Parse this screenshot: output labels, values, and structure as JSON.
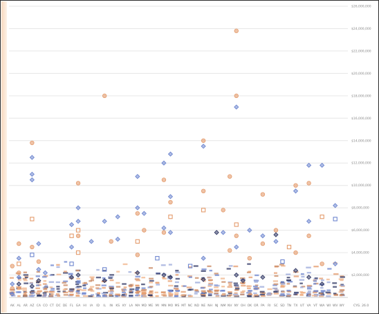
{
  "chart_data": {
    "type": "scatter",
    "title": "",
    "xlabel": "",
    "ylabel": "",
    "ylim": [
      0,
      26000000
    ],
    "y_axis_side": "right",
    "y_tick_values": [
      2000000,
      4000000,
      6000000,
      8000000,
      10000000,
      12000000,
      14000000,
      16000000,
      18000000,
      20000000,
      22000000,
      24000000,
      26000000
    ],
    "y_tick_labels": [
      "$2,000,000",
      "$4,000,000",
      "$6,000,000",
      "$8,000,000",
      "$10,000,000",
      "$12,000,000",
      "$14,000,000",
      "$16,000,000",
      "$18,000,000",
      "$20,000,000",
      "$22,000,000",
      "$24,000,000",
      "$26,000,000"
    ],
    "grid": true,
    "legend": "none",
    "categories": [
      "AK",
      "AL",
      "AR",
      "AZ",
      "CA",
      "CO",
      "CT",
      "DC",
      "DE",
      "FL",
      "GA",
      "HI",
      "IA",
      "ID",
      "IL",
      "IN",
      "KS",
      "KY",
      "LA",
      "MA",
      "MD",
      "ME",
      "MI",
      "MN",
      "MO",
      "MS",
      "MT",
      "NC",
      "ND",
      "NE",
      "NH",
      "NJ",
      "NM",
      "NV",
      "NY",
      "OH",
      "OK",
      "OR",
      "PA",
      "RI",
      "SC",
      "SD",
      "TN",
      "TX",
      "UT",
      "VA",
      "VT",
      "WA",
      "WI",
      "WV",
      "WY"
    ],
    "x_corner_label": "CYG. 26.0",
    "colors": {
      "blue": "#6e86cf",
      "orange": "#e49b6c",
      "dark": "#333a66"
    },
    "series": [
      {
        "name": "",
        "marker": "diamond",
        "color": "blue",
        "points": [
          {
            "x": "AK",
            "y": 1200000
          },
          {
            "x": "AK",
            "y": 300000
          },
          {
            "x": "AL",
            "y": 3500000
          },
          {
            "x": "AL",
            "y": 1800000
          },
          {
            "x": "AZ",
            "y": 11000000
          },
          {
            "x": "AZ",
            "y": 12500000
          },
          {
            "x": "AZ",
            "y": 10500000
          },
          {
            "x": "CA",
            "y": 4800000
          },
          {
            "x": "CA",
            "y": 2500000
          },
          {
            "x": "CO",
            "y": 2200000
          },
          {
            "x": "FL",
            "y": 6500000
          },
          {
            "x": "FL",
            "y": 4500000
          },
          {
            "x": "GA",
            "y": 8000000
          },
          {
            "x": "GA",
            "y": 6800000
          },
          {
            "x": "IA",
            "y": 5000000
          },
          {
            "x": "IL",
            "y": 6800000
          },
          {
            "x": "KS",
            "y": 7200000
          },
          {
            "x": "KS",
            "y": 5200000
          },
          {
            "x": "MA",
            "y": 10800000
          },
          {
            "x": "MA",
            "y": 8000000
          },
          {
            "x": "MD",
            "y": 7500000
          },
          {
            "x": "MN",
            "y": 12000000
          },
          {
            "x": "MN",
            "y": 6200000
          },
          {
            "x": "MO",
            "y": 12800000
          },
          {
            "x": "MO",
            "y": 9000000
          },
          {
            "x": "MO",
            "y": 5800000
          },
          {
            "x": "NE",
            "y": 13500000
          },
          {
            "x": "NE",
            "y": 3500000
          },
          {
            "x": "NM",
            "y": 5800000
          },
          {
            "x": "NY",
            "y": 17000000
          },
          {
            "x": "NY",
            "y": 4500000
          },
          {
            "x": "OK",
            "y": 6000000
          },
          {
            "x": "PA",
            "y": 5500000
          },
          {
            "x": "SC",
            "y": 5000000
          },
          {
            "x": "TX",
            "y": 9500000
          },
          {
            "x": "VA",
            "y": 11800000
          },
          {
            "x": "VA",
            "y": 6800000
          },
          {
            "x": "WA",
            "y": 11800000
          },
          {
            "x": "WV",
            "y": 8200000
          },
          {
            "x": "WV",
            "y": 3000000
          }
        ]
      },
      {
        "name": "",
        "marker": "circle",
        "color": "orange",
        "points": [
          {
            "x": "AK",
            "y": 2800000
          },
          {
            "x": "AK",
            "y": 800000
          },
          {
            "x": "AL",
            "y": 4800000
          },
          {
            "x": "AL",
            "y": 2200000
          },
          {
            "x": "AZ",
            "y": 13800000
          },
          {
            "x": "AZ",
            "y": 4500000
          },
          {
            "x": "CA",
            "y": 3200000
          },
          {
            "x": "GA",
            "y": 10200000
          },
          {
            "x": "GA",
            "y": 5500000
          },
          {
            "x": "IL",
            "y": 18000000
          },
          {
            "x": "IN",
            "y": 5000000
          },
          {
            "x": "MA",
            "y": 7500000
          },
          {
            "x": "MA",
            "y": 3800000
          },
          {
            "x": "MD",
            "y": 6000000
          },
          {
            "x": "MN",
            "y": 10500000
          },
          {
            "x": "MN",
            "y": 5800000
          },
          {
            "x": "MO",
            "y": 8500000
          },
          {
            "x": "NE",
            "y": 14000000
          },
          {
            "x": "NE",
            "y": 9500000
          },
          {
            "x": "NM",
            "y": 7800000
          },
          {
            "x": "NV",
            "y": 10800000
          },
          {
            "x": "NV",
            "y": 4200000
          },
          {
            "x": "NY",
            "y": 23800000
          },
          {
            "x": "NY",
            "y": 18000000
          },
          {
            "x": "NY",
            "y": 5500000
          },
          {
            "x": "OK",
            "y": 3500000
          },
          {
            "x": "PA",
            "y": 9200000
          },
          {
            "x": "PA",
            "y": 4800000
          },
          {
            "x": "SC",
            "y": 6000000
          },
          {
            "x": "TX",
            "y": 10000000
          },
          {
            "x": "TX",
            "y": 4000000
          },
          {
            "x": "VA",
            "y": 10200000
          },
          {
            "x": "VA",
            "y": 5500000
          },
          {
            "x": "WA",
            "y": 3000000
          }
        ]
      },
      {
        "name": "",
        "marker": "square",
        "color": "orange",
        "points": [
          {
            "x": "AL",
            "y": 3000000
          },
          {
            "x": "AZ",
            "y": 7000000
          },
          {
            "x": "FL",
            "y": 5500000
          },
          {
            "x": "GA",
            "y": 6000000
          },
          {
            "x": "GA",
            "y": 4000000
          },
          {
            "x": "MA",
            "y": 5000000
          },
          {
            "x": "MO",
            "y": 7200000
          },
          {
            "x": "NE",
            "y": 7800000
          },
          {
            "x": "NY",
            "y": 6500000
          },
          {
            "x": "TN",
            "y": 4500000
          },
          {
            "x": "WA",
            "y": 7200000
          }
        ]
      },
      {
        "name": "",
        "marker": "square",
        "color": "blue",
        "points": [
          {
            "x": "AZ",
            "y": 3800000
          },
          {
            "x": "FL",
            "y": 3000000
          },
          {
            "x": "IL",
            "y": 2500000
          },
          {
            "x": "MI",
            "y": 3500000
          },
          {
            "x": "NC",
            "y": 2800000
          },
          {
            "x": "SD",
            "y": 3200000
          },
          {
            "x": "WV",
            "y": 7000000
          }
        ]
      },
      {
        "name": "",
        "marker": "diamond",
        "color": "dark",
        "points": [
          {
            "x": "AL",
            "y": 1200000
          },
          {
            "x": "AZ",
            "y": 1000000
          },
          {
            "x": "CA",
            "y": 1500000
          },
          {
            "x": "FL",
            "y": 1800000
          },
          {
            "x": "GA",
            "y": 2000000
          },
          {
            "x": "IL",
            "y": 1500000
          },
          {
            "x": "MA",
            "y": 2200000
          },
          {
            "x": "MN",
            "y": 2000000
          },
          {
            "x": "MO",
            "y": 1800000
          },
          {
            "x": "NE",
            "y": 1600000
          },
          {
            "x": "NJ",
            "y": 5800000
          },
          {
            "x": "NY",
            "y": 2000000
          },
          {
            "x": "OH",
            "y": 1500000
          },
          {
            "x": "PA",
            "y": 1800000
          },
          {
            "x": "SC",
            "y": 5600000
          },
          {
            "x": "TX",
            "y": 2400000
          },
          {
            "x": "VA",
            "y": 1800000
          },
          {
            "x": "WA",
            "y": 1200000
          }
        ]
      }
    ]
  }
}
